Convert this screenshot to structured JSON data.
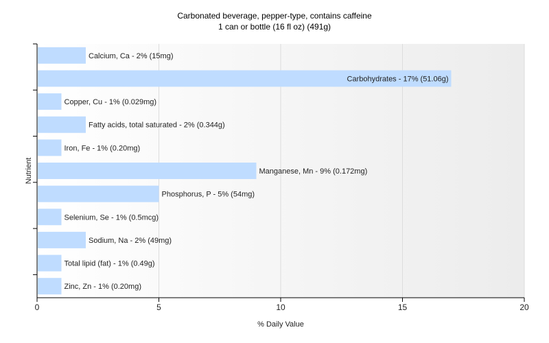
{
  "chart_data": {
    "type": "bar",
    "orientation": "horizontal",
    "title": "Carbonated beverage, pepper-type, contains caffeine",
    "subtitle": "1 can or bottle (16 fl oz) (491g)",
    "xlabel": "% Daily Value",
    "ylabel": "Nutrient",
    "xlim": [
      0,
      20
    ],
    "xticks": [
      "0",
      "5",
      "10",
      "15",
      "20"
    ],
    "grid": true,
    "bar_color": "#bfdcff",
    "categories": [
      "Calcium, Ca",
      "Carbohydrates",
      "Copper, Cu",
      "Fatty acids, total saturated",
      "Iron, Fe",
      "Manganese, Mn",
      "Phosphorus, P",
      "Selenium, Se",
      "Sodium, Na",
      "Total lipid (fat)",
      "Zinc, Zn"
    ],
    "values": [
      2,
      17,
      1,
      2,
      1,
      9,
      5,
      1,
      2,
      1,
      1
    ],
    "labels": [
      "Calcium, Ca - 2% (15mg)",
      "Carbohydrates - 17% (51.06g)",
      "Copper, Cu - 1% (0.029mg)",
      "Fatty acids, total saturated - 2% (0.344g)",
      "Iron, Fe - 1% (0.20mg)",
      "Manganese, Mn - 9% (0.172mg)",
      "Phosphorus, P - 5% (54mg)",
      "Selenium, Se - 1% (0.5mcg)",
      "Sodium, Na - 2% (49mg)",
      "Total lipid (fat) - 1% (0.49g)",
      "Zinc, Zn - 1% (0.20mg)"
    ]
  }
}
